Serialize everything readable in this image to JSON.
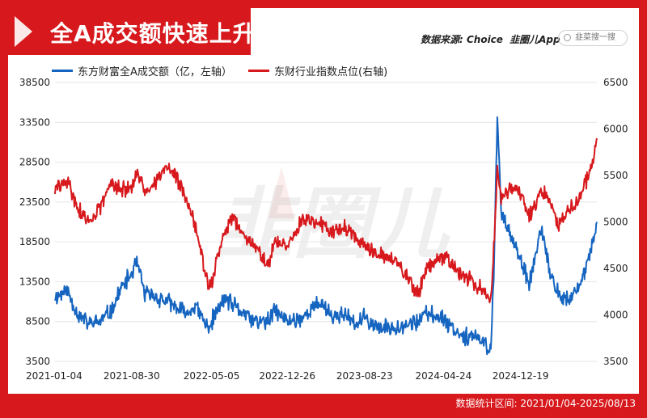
{
  "header": {
    "title": "全A成交额快速上升",
    "source_label": "数据来源: Choice",
    "source_brand": "韭圈儿App",
    "search_placeholder": "韭菜搜一搜"
  },
  "footer": {
    "date_range": "数据统计区间: 2021/01/04-2025/08/13"
  },
  "watermark": "韭圈儿",
  "colors": {
    "frame": "#d7191d",
    "series_left": "#1565c0",
    "series_right": "#d7191d",
    "grid": "#e6e6e6"
  },
  "chart_data": {
    "type": "line",
    "title": "全A成交额快速上升",
    "x_tick_labels": [
      "2021-01-04",
      "2021-08-30",
      "2022-05-05",
      "2022-12-26",
      "2023-08-23",
      "2024-04-24",
      "2024-12-19"
    ],
    "y_left": {
      "min": 3500,
      "max": 38500,
      "ticks": [
        3500,
        8500,
        13500,
        18500,
        23500,
        28500,
        33500,
        38500
      ]
    },
    "y_right": {
      "min": 3500,
      "max": 6500,
      "ticks": [
        3500,
        4000,
        4500,
        5000,
        5500,
        6000,
        6500
      ]
    },
    "series": [
      {
        "name": "东方财富全A成交额（亿，左轴）",
        "axis": "left",
        "points": [
          [
            "2021-01-04",
            11500
          ],
          [
            "2021-02-10",
            12500
          ],
          [
            "2021-03-15",
            9500
          ],
          [
            "2021-04-20",
            8200
          ],
          [
            "2021-05-25",
            8500
          ],
          [
            "2021-07-01",
            10000
          ],
          [
            "2021-07-26",
            12500
          ],
          [
            "2021-08-30",
            14500
          ],
          [
            "2021-09-15",
            16000
          ],
          [
            "2021-10-10",
            12000
          ],
          [
            "2021-11-15",
            11500
          ],
          [
            "2021-12-20",
            11000
          ],
          [
            "2022-01-20",
            10000
          ],
          [
            "2022-02-20",
            9500
          ],
          [
            "2022-03-15",
            10500
          ],
          [
            "2022-04-26",
            7500
          ],
          [
            "2022-05-05",
            8500
          ],
          [
            "2022-06-15",
            11500
          ],
          [
            "2022-07-10",
            10500
          ],
          [
            "2022-08-15",
            9500
          ],
          [
            "2022-09-15",
            8500
          ],
          [
            "2022-10-31",
            8500
          ],
          [
            "2022-11-15",
            10000
          ],
          [
            "2022-12-26",
            8500
          ],
          [
            "2023-02-10",
            9000
          ],
          [
            "2023-04-10",
            11000
          ],
          [
            "2023-05-15",
            9000
          ],
          [
            "2023-06-20",
            9500
          ],
          [
            "2023-07-25",
            8000
          ],
          [
            "2023-08-23",
            9000
          ],
          [
            "2023-10-15",
            7500
          ],
          [
            "2023-12-10",
            8000
          ],
          [
            "2024-02-05",
            8500
          ],
          [
            "2024-03-01",
            9500
          ],
          [
            "2024-04-24",
            9000
          ],
          [
            "2024-06-10",
            7000
          ],
          [
            "2024-07-30",
            6500
          ],
          [
            "2024-09-18",
            5200
          ],
          [
            "2024-09-27",
            14000
          ],
          [
            "2024-10-08",
            34500
          ],
          [
            "2024-10-20",
            22000
          ],
          [
            "2024-11-15",
            20000
          ],
          [
            "2024-12-19",
            16000
          ],
          [
            "2025-01-15",
            13000
          ],
          [
            "2025-02-20",
            20000
          ],
          [
            "2025-03-25",
            14000
          ],
          [
            "2025-04-15",
            12000
          ],
          [
            "2025-05-20",
            11000
          ],
          [
            "2025-06-20",
            13000
          ],
          [
            "2025-07-25",
            17000
          ],
          [
            "2025-08-13",
            21000
          ]
        ]
      },
      {
        "name": "东财行业指数点位(右轴)",
        "axis": "right",
        "points": [
          [
            "2021-01-04",
            5350
          ],
          [
            "2021-02-10",
            5450
          ],
          [
            "2021-03-15",
            5150
          ],
          [
            "2021-04-20",
            5000
          ],
          [
            "2021-05-25",
            5150
          ],
          [
            "2021-07-01",
            5450
          ],
          [
            "2021-07-26",
            5350
          ],
          [
            "2021-08-30",
            5350
          ],
          [
            "2021-09-15",
            5500
          ],
          [
            "2021-10-10",
            5350
          ],
          [
            "2021-11-15",
            5450
          ],
          [
            "2021-12-20",
            5600
          ],
          [
            "2022-01-20",
            5450
          ],
          [
            "2022-02-20",
            5200
          ],
          [
            "2022-03-15",
            4950
          ],
          [
            "2022-04-26",
            4300
          ],
          [
            "2022-05-05",
            4350
          ],
          [
            "2022-06-15",
            4900
          ],
          [
            "2022-07-10",
            5050
          ],
          [
            "2022-08-15",
            4850
          ],
          [
            "2022-09-15",
            4750
          ],
          [
            "2022-10-31",
            4500
          ],
          [
            "2022-11-15",
            4800
          ],
          [
            "2022-12-26",
            4750
          ],
          [
            "2023-02-10",
            5000
          ],
          [
            "2023-04-10",
            5000
          ],
          [
            "2023-05-15",
            4900
          ],
          [
            "2023-06-20",
            4950
          ],
          [
            "2023-07-25",
            4850
          ],
          [
            "2023-08-23",
            4750
          ],
          [
            "2023-10-15",
            4650
          ],
          [
            "2023-12-10",
            4550
          ],
          [
            "2024-02-05",
            4200
          ],
          [
            "2024-03-01",
            4500
          ],
          [
            "2024-04-24",
            4650
          ],
          [
            "2024-06-10",
            4450
          ],
          [
            "2024-07-30",
            4350
          ],
          [
            "2024-09-18",
            4150
          ],
          [
            "2024-09-27",
            4700
          ],
          [
            "2024-10-08",
            5600
          ],
          [
            "2024-10-20",
            5250
          ],
          [
            "2024-11-15",
            5350
          ],
          [
            "2024-12-19",
            5300
          ],
          [
            "2025-01-15",
            5050
          ],
          [
            "2025-02-20",
            5350
          ],
          [
            "2025-03-25",
            5200
          ],
          [
            "2025-04-15",
            4950
          ],
          [
            "2025-05-20",
            5150
          ],
          [
            "2025-06-20",
            5250
          ],
          [
            "2025-07-25",
            5550
          ],
          [
            "2025-08-13",
            5900
          ]
        ]
      }
    ]
  }
}
